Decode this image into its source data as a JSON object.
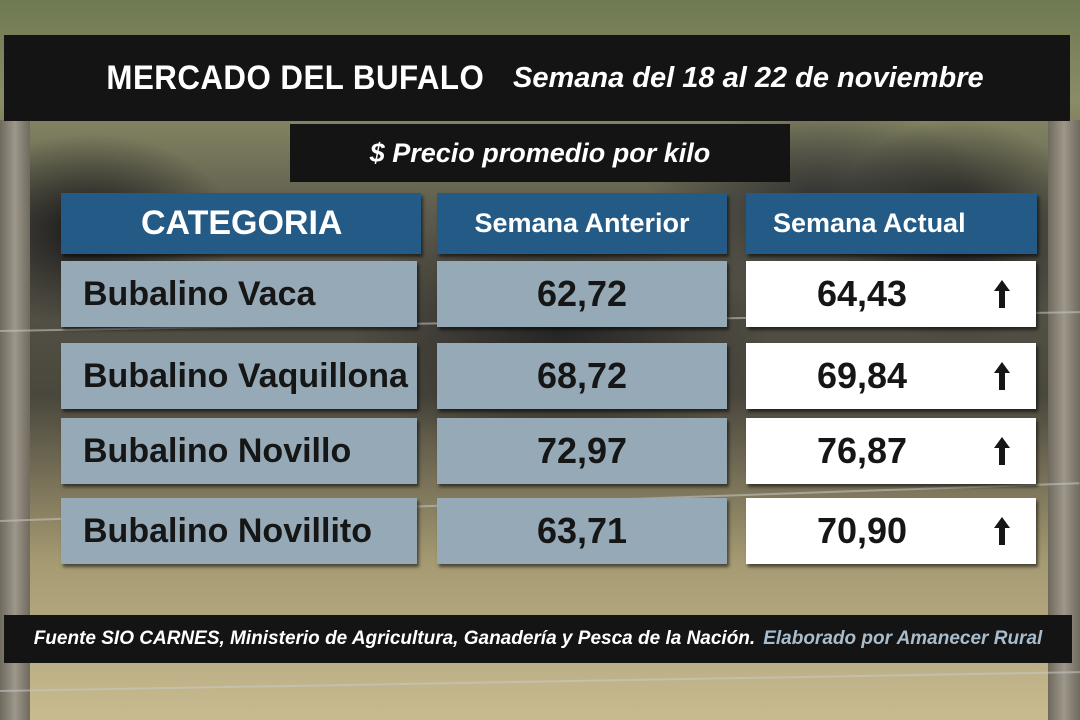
{
  "header": {
    "title": "MERCADO DEL BUFALO",
    "subtitle": "Semana del 18 al 22 de noviembre"
  },
  "unit_label": "$ Precio promedio por kilo",
  "colors": {
    "header_blue": "#245b86",
    "category_cell": "#95a9b7",
    "current_cell": "#ffffff",
    "banner": "#141414",
    "credit_text": "#a9bccb"
  },
  "chart_data": {
    "type": "table",
    "columns": [
      "CATEGORIA",
      "Semana Anterior",
      "Semana Actual"
    ],
    "rows": [
      {
        "category": "Bubalino Vaca",
        "previous": "62,72",
        "current": "64,43",
        "trend_icon": "arrow-up-icon"
      },
      {
        "category": "Bubalino Vaquillona",
        "previous": "68,72",
        "current": "69,84",
        "trend_icon": "arrow-up-icon"
      },
      {
        "category": "Bubalino Novillo",
        "previous": "72,97",
        "current": "76,87",
        "trend_icon": "arrow-up-icon"
      },
      {
        "category": "Bubalino Novillito",
        "previous": "63,71",
        "current": "70,90",
        "trend_icon": "arrow-up-icon"
      }
    ]
  },
  "footer": {
    "source": "Fuente SIO CARNES,  Ministerio de Agricultura, Ganadería y Pesca de la Nación.",
    "credit": "Elaborado por  Amanecer Rural"
  }
}
